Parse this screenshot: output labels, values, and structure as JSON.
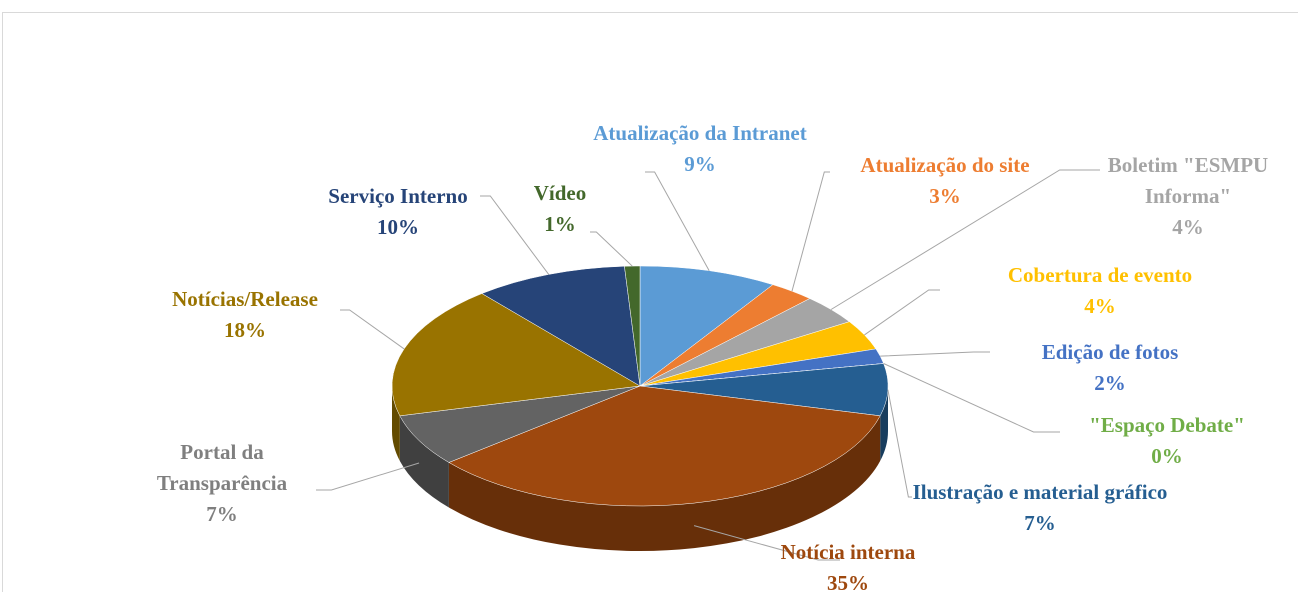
{
  "chart_data": {
    "type": "pie",
    "categories": [
      "Atualização da Intranet",
      "Atualização do site",
      "Boletim \"ESMPU Informa\"",
      "Cobertura de evento",
      "Edição de fotos",
      "\"Espaço Debate\"",
      "Ilustração e material gráfico",
      "Notícia interna",
      "Portal da Transparência",
      "Notícias/Release",
      "Serviço Interno",
      "Vídeo"
    ],
    "values": [
      9,
      3,
      4,
      4,
      2,
      0,
      7,
      35,
      7,
      18,
      10,
      1
    ],
    "value_labels": [
      "9%",
      "3%",
      "4%",
      "4%",
      "2%",
      "0%",
      "7%",
      "35%",
      "7%",
      "18%",
      "10%",
      "1%"
    ],
    "colors": [
      "#5b9bd5",
      "#ed7d31",
      "#a5a5a5",
      "#ffc000",
      "#4472c4",
      "#70ad47",
      "#255e91",
      "#9e480e",
      "#636363",
      "#997300",
      "#264478",
      "#43682b"
    ]
  }
}
